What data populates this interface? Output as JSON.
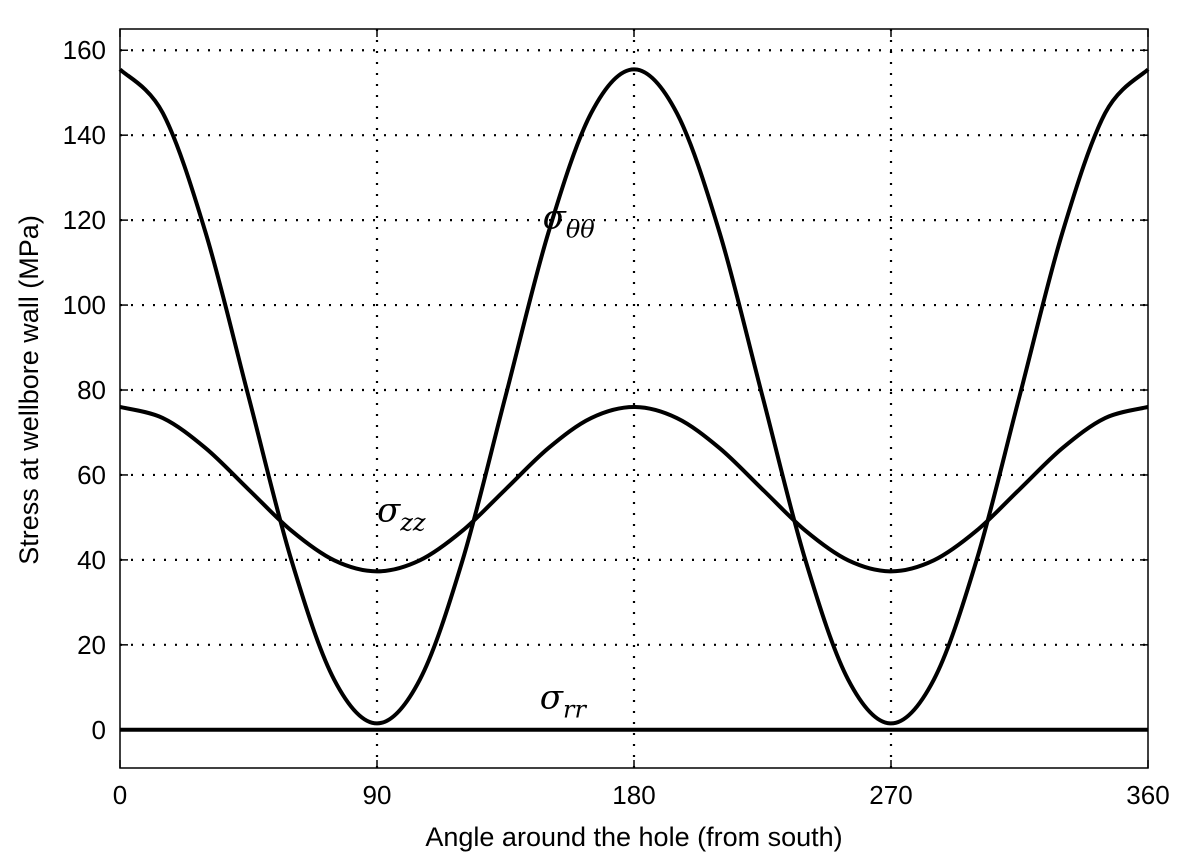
{
  "chart_data": {
    "type": "line",
    "xlabel": "Angle around the hole (from south)",
    "ylabel": "Stress at wellbore wall (MPa)",
    "xlim": [
      0,
      360
    ],
    "ylim": [
      -9,
      165
    ],
    "xticks": [
      0,
      90,
      180,
      270,
      360
    ],
    "yticks": [
      0,
      20,
      40,
      60,
      80,
      100,
      120,
      140,
      160
    ],
    "grid": true,
    "grid_style": "dotted",
    "series": [
      {
        "name": "σθθ",
        "label_symbol": "σ",
        "label_subscript": "θθ",
        "x": [
          0,
          15,
          30,
          45,
          60,
          75,
          90,
          105,
          120,
          135,
          150,
          165,
          180,
          195,
          210,
          225,
          240,
          255,
          270,
          285,
          300,
          315,
          330,
          345,
          360
        ],
        "y": [
          155.5,
          145.2,
          117.0,
          78.5,
          40.0,
          11.8,
          1.5,
          11.8,
          40.0,
          78.5,
          117.0,
          145.2,
          155.5,
          145.2,
          117.0,
          78.5,
          40.0,
          11.8,
          1.5,
          11.8,
          40.0,
          78.5,
          117.0,
          145.2,
          155.5
        ]
      },
      {
        "name": "σzz",
        "label_symbol": "σ",
        "label_subscript": "zz",
        "x": [
          0,
          15,
          30,
          45,
          60,
          75,
          90,
          105,
          120,
          135,
          150,
          165,
          180,
          195,
          210,
          225,
          240,
          255,
          270,
          285,
          300,
          315,
          330,
          345,
          360
        ],
        "y": [
          76.0,
          73.4,
          66.3,
          56.6,
          46.9,
          39.9,
          37.3,
          39.9,
          46.9,
          56.6,
          66.3,
          73.4,
          76.0,
          73.4,
          66.3,
          56.6,
          46.9,
          39.9,
          37.3,
          39.9,
          46.9,
          56.6,
          66.3,
          73.4,
          76.0
        ]
      },
      {
        "name": "σrr",
        "label_symbol": "σ",
        "label_subscript": "rr",
        "x": [
          0,
          360
        ],
        "y": [
          0,
          0
        ]
      }
    ],
    "series_labels": [
      {
        "series": "σθθ",
        "x": 148,
        "y": 118
      },
      {
        "series": "σzz",
        "x": 90,
        "y": 49
      },
      {
        "series": "σrr",
        "x": 147,
        "y": 5
      }
    ]
  }
}
